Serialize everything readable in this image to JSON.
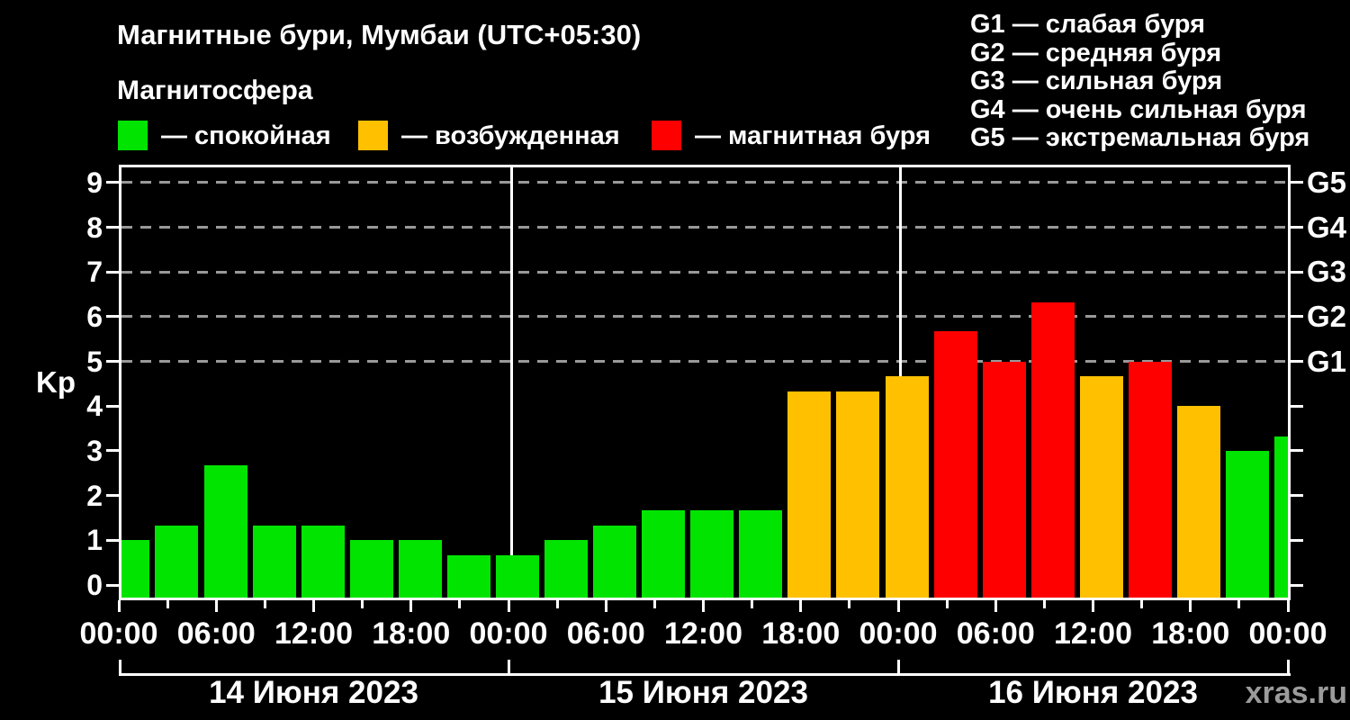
{
  "header": {
    "title": "Магнитные бури, Мумбаи (UTC+05:30)",
    "subtitle": "Магнитосфера"
  },
  "legend": {
    "items": [
      {
        "key": "quiet",
        "label": "— спокойная"
      },
      {
        "key": "excited",
        "label": "— возбужденная"
      },
      {
        "key": "storm",
        "label": "— магнитная буря"
      }
    ]
  },
  "storm_scale": {
    "items": [
      "G1 — слабая буря",
      "G2 — средняя буря",
      "G3 — сильная буря",
      "G4 — очень сильная буря",
      "G5 — экстремальная буря"
    ]
  },
  "colors": {
    "quiet": "#00E400",
    "excited": "#FFC000",
    "storm": "#FF0000",
    "grid": "#999999",
    "axis": "#FFFFFF",
    "watermark": "#9B9B9B"
  },
  "chart_data": {
    "type": "bar",
    "ylabel": "Kp",
    "ylim": [
      0,
      9.4
    ],
    "y_ticks": [
      "0",
      "1",
      "2",
      "3",
      "4",
      "5",
      "6",
      "7",
      "8",
      "9"
    ],
    "right_axis": {
      "codes": [
        "G1",
        "G2",
        "G3",
        "G4",
        "G5"
      ],
      "at_kp": [
        5,
        6,
        7,
        8,
        9
      ]
    },
    "x_tick_labels": [
      "00:00",
      "06:00",
      "12:00",
      "18:00",
      "00:00",
      "06:00",
      "12:00",
      "18:00",
      "00:00",
      "06:00",
      "12:00",
      "18:00",
      "00:00"
    ],
    "color_rule": {
      "quiet_below": 4,
      "excited_below": 5
    },
    "grid": true,
    "legend_position": "top",
    "days": [
      {
        "date": "14 Июня 2023",
        "values": [
          1,
          1.33,
          2.67,
          1.33,
          1.33,
          1,
          1,
          0.67
        ]
      },
      {
        "date": "15 Июня 2023",
        "values": [
          0.67,
          1,
          1.33,
          1.67,
          1.67,
          1.67,
          4.33,
          4.33
        ]
      },
      {
        "date": "16 Июня 2023",
        "values": [
          4.67,
          5.67,
          5,
          6.33,
          4.67,
          5,
          4,
          3
        ]
      }
    ],
    "next_partial_value": 3.33
  },
  "watermark": "xras.ru"
}
